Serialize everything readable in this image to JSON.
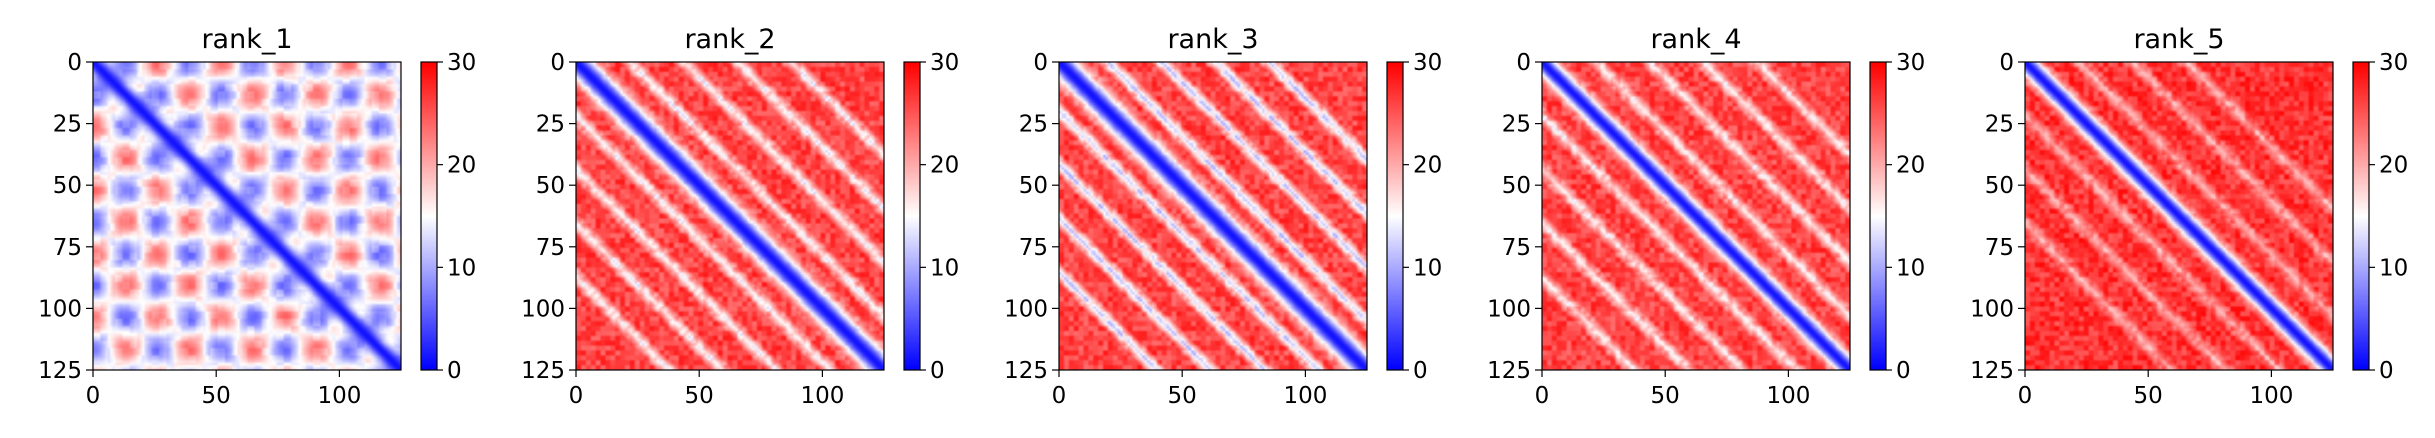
{
  "chart_data": [
    {
      "type": "heatmap",
      "title": "rank_1",
      "xlim": [
        0,
        125
      ],
      "ylim": [
        125,
        0
      ],
      "xticks": [
        0,
        50,
        100
      ],
      "yticks": [
        0,
        25,
        50,
        75,
        100,
        125
      ],
      "colorbar": {
        "range": [
          0,
          30
        ],
        "ticks": [
          0,
          10,
          20,
          30
        ],
        "colormap": [
          "#0000ff",
          "#ffffff",
          "#ff0000"
        ]
      },
      "pattern": {
        "diagonal_value": 1,
        "diagonal_width": 4,
        "base_value": 15,
        "periodic_bands": true,
        "band_period": 26,
        "band_amplitude": 9
      }
    },
    {
      "type": "heatmap",
      "title": "rank_2",
      "xlim": [
        0,
        125
      ],
      "ylim": [
        125,
        0
      ],
      "xticks": [
        0,
        50,
        100
      ],
      "yticks": [
        0,
        25,
        50,
        75,
        100,
        125
      ],
      "colorbar": {
        "range": [
          0,
          30
        ],
        "ticks": [
          0,
          10,
          20,
          30
        ],
        "colormap": [
          "#0000ff",
          "#ffffff",
          "#ff0000"
        ]
      },
      "pattern": {
        "diagonal_value": 1,
        "diagonal_width": 5,
        "base_value": 26,
        "stripe_offsets": [
          22,
          44,
          66,
          88
        ],
        "stripe_value": 15
      }
    },
    {
      "type": "heatmap",
      "title": "rank_3",
      "xlim": [
        0,
        125
      ],
      "ylim": [
        125,
        0
      ],
      "xticks": [
        0,
        50,
        100
      ],
      "yticks": [
        0,
        25,
        50,
        75,
        100,
        125
      ],
      "colorbar": {
        "range": [
          0,
          30
        ],
        "ticks": [
          0,
          10,
          20,
          30
        ],
        "colormap": [
          "#0000ff",
          "#ffffff",
          "#ff0000"
        ]
      },
      "pattern": {
        "diagonal_value": 1,
        "diagonal_width": 5,
        "base_value": 26,
        "stripe_offsets": [
          20,
          42,
          64,
          86
        ],
        "stripe_value": 12
      }
    },
    {
      "type": "heatmap",
      "title": "rank_4",
      "xlim": [
        0,
        125
      ],
      "ylim": [
        125,
        0
      ],
      "xticks": [
        0,
        50,
        100
      ],
      "yticks": [
        0,
        25,
        50,
        75,
        100,
        125
      ],
      "colorbar": {
        "range": [
          0,
          30
        ],
        "ticks": [
          0,
          10,
          20,
          30
        ],
        "colormap": [
          "#0000ff",
          "#ffffff",
          "#ff0000"
        ]
      },
      "pattern": {
        "diagonal_value": 1,
        "diagonal_width": 4,
        "base_value": 26,
        "stripe_offsets": [
          22,
          44,
          66,
          88
        ],
        "stripe_value": 16
      }
    },
    {
      "type": "heatmap",
      "title": "rank_5",
      "xlim": [
        0,
        125
      ],
      "ylim": [
        125,
        0
      ],
      "xticks": [
        0,
        50,
        100
      ],
      "yticks": [
        0,
        25,
        50,
        75,
        100,
        125
      ],
      "colorbar": {
        "range": [
          0,
          30
        ],
        "ticks": [
          0,
          10,
          20,
          30
        ],
        "colormap": [
          "#0000ff",
          "#ffffff",
          "#ff0000"
        ]
      },
      "pattern": {
        "diagonal_value": 1,
        "diagonal_width": 4,
        "base_value": 27,
        "stripe_offsets": [
          22,
          44,
          66
        ],
        "stripe_value": 20
      }
    }
  ]
}
